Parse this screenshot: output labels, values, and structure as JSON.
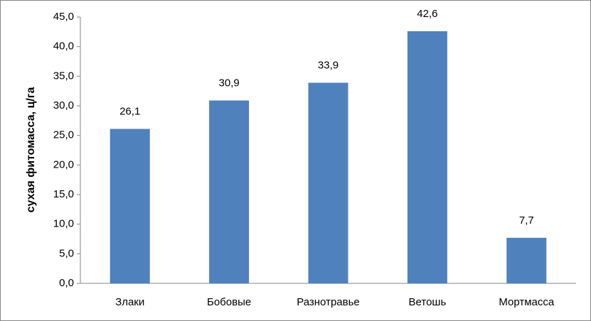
{
  "chart_data": {
    "type": "bar",
    "y_label": "сухая фитомасса, ц/га",
    "categories": [
      "Злаки",
      "Бобовые",
      "Разнотравье",
      "Ветошь",
      "Мортмасса"
    ],
    "values": [
      26.1,
      30.9,
      33.9,
      42.6,
      7.7
    ],
    "value_labels": [
      "26,1",
      "30,9",
      "33,9",
      "42,6",
      "7,7"
    ],
    "color": "#4f81bd",
    "ylim": [
      0,
      45
    ],
    "yticks": [
      {
        "value": 0,
        "label": "0,0"
      },
      {
        "value": 5,
        "label": "5,0"
      },
      {
        "value": 10,
        "label": "10,0"
      },
      {
        "value": 15,
        "label": "15,0"
      },
      {
        "value": 20,
        "label": "20,0"
      },
      {
        "value": 25,
        "label": "25,0"
      },
      {
        "value": 30,
        "label": "30,0"
      },
      {
        "value": 35,
        "label": "35,0"
      },
      {
        "value": 40,
        "label": "40,0"
      },
      {
        "value": 45,
        "label": "45,0"
      }
    ],
    "grid": false
  }
}
